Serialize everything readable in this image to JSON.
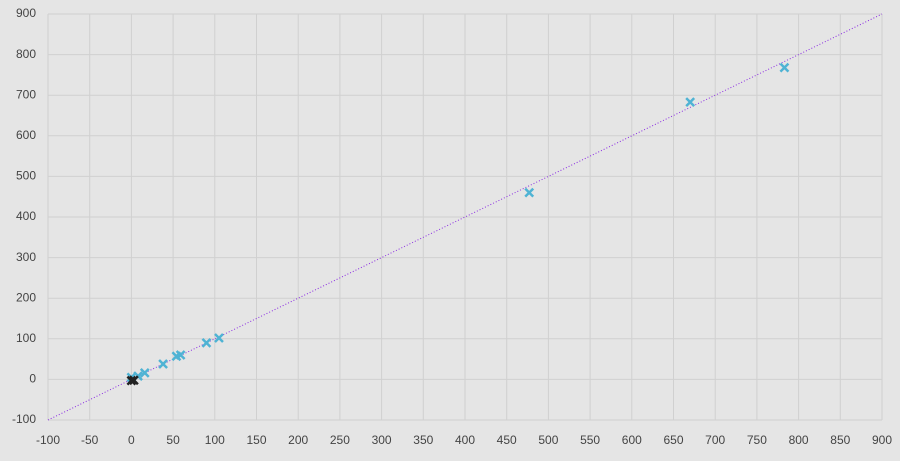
{
  "chart_data": {
    "type": "scatter",
    "xlim": [
      -100,
      900
    ],
    "ylim": [
      -100,
      900
    ],
    "xticks": [
      -100,
      -50,
      0,
      50,
      100,
      150,
      200,
      250,
      300,
      350,
      400,
      450,
      500,
      550,
      600,
      650,
      700,
      750,
      800,
      850,
      900
    ],
    "yticks": [
      -100,
      0,
      100,
      200,
      300,
      400,
      500,
      600,
      700,
      800,
      900
    ],
    "grid": true,
    "reference_line": {
      "x": [
        -100,
        900
      ],
      "values": [
        -100,
        900
      ],
      "color": "#8a2be2",
      "style": "dotted"
    },
    "series": [
      {
        "color": "#4fb3d4",
        "x": [
          783,
          670,
          477,
          105,
          90,
          59,
          54,
          38,
          16,
          8,
          0
        ],
        "values": [
          768,
          683,
          460,
          102,
          90,
          60,
          57,
          38,
          16,
          8,
          5
        ]
      },
      {
        "color": "#222222",
        "x": [
          3,
          0
        ],
        "values": [
          -2,
          -3
        ]
      }
    ]
  }
}
